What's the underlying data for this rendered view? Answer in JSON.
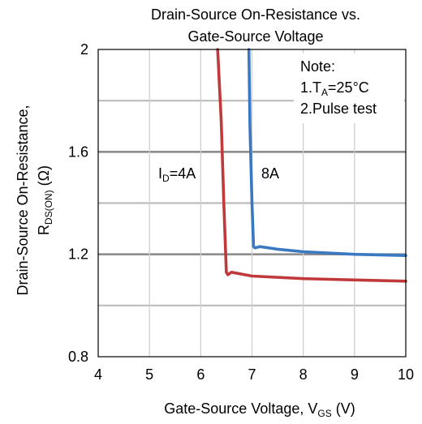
{
  "chart_data": {
    "type": "line",
    "title_line1": "Drain-Source On-Resistance vs.",
    "title_line2": "Gate-Source Voltage",
    "xlabel": "Gate-Source Voltage, V",
    "xlabel_sub": "GS",
    "xlabel_unit": " (V)",
    "ylabel_line1": "Drain-Source On-Resistance,",
    "ylabel_line2_main": "R",
    "ylabel_line2_sub": "DS(ON)",
    "ylabel_line2_unit": " (Ω)",
    "xlim": [
      4,
      10
    ],
    "ylim": [
      0.8,
      2.0
    ],
    "x_ticks": [
      4,
      5,
      6,
      7,
      8,
      9,
      10
    ],
    "y_ticks": [
      {
        "value": 0.8,
        "label": "0.8"
      },
      {
        "value": 1.2,
        "label": "1.2"
      },
      {
        "value": 1.6,
        "label": "1.6"
      },
      {
        "value": 2.0,
        "label": "2"
      }
    ],
    "y_gridlines": [
      1.0,
      1.2,
      1.4,
      1.6,
      1.8
    ],
    "y_gridlines_major": [
      1.2,
      1.6
    ],
    "x_gridlines": [
      5,
      6,
      7,
      8,
      9
    ],
    "note": {
      "heading": "Note:",
      "line1_prefix": "1.T",
      "line1_sub": "A",
      "line1_suffix": "=25°C",
      "line2": "2.Pulse test"
    },
    "series": [
      {
        "label_main": "I",
        "label_sub": "D",
        "label_suffix": "=4A",
        "color": "#c0393b",
        "points": [
          [
            6.33,
            2.0
          ],
          [
            6.4,
            1.72
          ],
          [
            6.45,
            1.4
          ],
          [
            6.5,
            1.13
          ],
          [
            6.53,
            1.12
          ],
          [
            6.6,
            1.13
          ],
          [
            7.0,
            1.115
          ],
          [
            8.0,
            1.105
          ],
          [
            9.0,
            1.1
          ],
          [
            10.0,
            1.095
          ]
        ]
      },
      {
        "label_main": "8A",
        "label_sub": "",
        "label_suffix": "",
        "color": "#3a78c2",
        "points": [
          [
            6.94,
            2.0
          ],
          [
            6.96,
            1.7
          ],
          [
            7.0,
            1.4
          ],
          [
            7.03,
            1.23
          ],
          [
            7.06,
            1.225
          ],
          [
            7.15,
            1.23
          ],
          [
            7.5,
            1.22
          ],
          [
            8.0,
            1.21
          ],
          [
            9.0,
            1.2
          ],
          [
            10.0,
            1.195
          ]
        ]
      }
    ]
  }
}
